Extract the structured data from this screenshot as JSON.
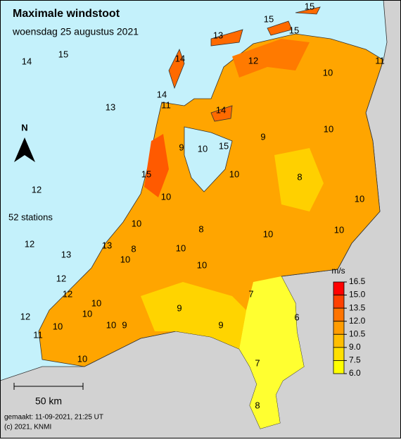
{
  "header": {
    "title": "Maximale windstoot",
    "subtitle": "woensdag 25 augustus 2021"
  },
  "compass": "N",
  "station_count": "52 stations",
  "stations": [
    14,
    15,
    13,
    12,
    12,
    13,
    12,
    12,
    12,
    11,
    10,
    10,
    10,
    10,
    10,
    9,
    13,
    10,
    8,
    10,
    10,
    15,
    9,
    10,
    15,
    11,
    14,
    14,
    13,
    15,
    15,
    15,
    12,
    10,
    11,
    14,
    9,
    10,
    10,
    8,
    10,
    8,
    10,
    10,
    10,
    10,
    9,
    9,
    7,
    6,
    7,
    8
  ],
  "legend": {
    "unit": "m/s",
    "labels": [
      "16.5",
      "15.0",
      "13.5",
      "12.0",
      "10.5",
      "9.0",
      "7.5",
      "6.0"
    ],
    "colors": [
      "#ff0000",
      "#ff4000",
      "#ff7400",
      "#ff9c00",
      "#ffbe00",
      "#ffe000",
      "#ffff00"
    ]
  },
  "scale_bar": "50 km",
  "footer": {
    "made": "gemaakt: 11-09-2021, 21:25 UT",
    "copyright": "(c) 2021, KNMI"
  }
}
